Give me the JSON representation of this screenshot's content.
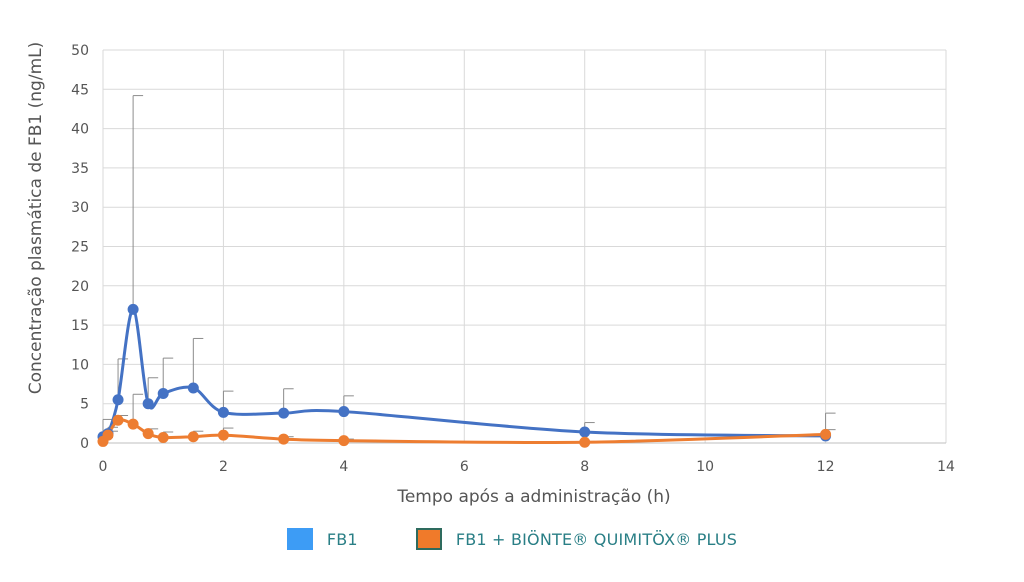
{
  "chart_data": {
    "type": "line",
    "title": "",
    "xlabel": "Tempo após a administração (h)",
    "ylabel": "Concentração plasmática de FB1 (ng/mL)",
    "xlim": [
      0,
      14
    ],
    "ylim": [
      0,
      50
    ],
    "xticks": [
      "0",
      "2",
      "4",
      "6",
      "8",
      "10",
      "12",
      "14"
    ],
    "yticks": [
      "0",
      "5",
      "10",
      "15",
      "20",
      "25",
      "30",
      "35",
      "40",
      "45",
      "50"
    ],
    "grid": true,
    "legend_position": "bottom",
    "series": [
      {
        "name": "FB1",
        "color": "#4472c4",
        "legend_color": "#3d9cf5",
        "x": [
          0,
          0.083,
          0.25,
          0.5,
          0.75,
          1,
          1.5,
          2,
          3,
          4,
          8,
          12
        ],
        "y": [
          0.8,
          1.2,
          5.5,
          17.0,
          5.0,
          6.3,
          7.0,
          3.9,
          3.8,
          4.0,
          1.4,
          0.9
        ],
        "error": [
          2.2,
          0.8,
          5.2,
          27.2,
          3.3,
          4.5,
          6.3,
          2.7,
          3.1,
          2.0,
          1.2,
          2.9
        ]
      },
      {
        "name": "FB1 + BIÖNTE® QUIMITÖX® PLUS",
        "color": "#ed7d31",
        "legend_color": "#f07a2a",
        "legend_border": "#2e6b5e",
        "x": [
          0,
          0.083,
          0.25,
          0.5,
          0.75,
          1,
          1.5,
          2,
          3,
          4,
          8,
          12
        ],
        "y": [
          0.2,
          1.0,
          2.9,
          2.4,
          1.2,
          0.7,
          0.8,
          1.0,
          0.5,
          0.3,
          0.1,
          1.1
        ],
        "error": [
          0.5,
          0.5,
          0.6,
          3.8,
          0.6,
          0.7,
          0.7,
          0.9,
          0.3,
          0.2,
          0.1,
          0.6
        ]
      }
    ]
  }
}
